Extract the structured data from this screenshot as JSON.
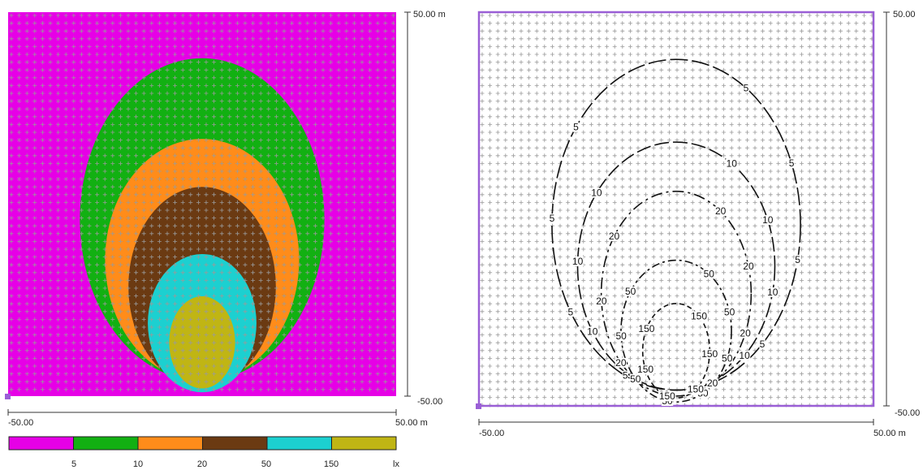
{
  "colors": {
    "background": "#e600e6",
    "grid": "#9a9a9a",
    "border": "#9a5fd6",
    "contour": "#111111",
    "bands": [
      "#e600e6",
      "#12b012",
      "#ff8c1a",
      "#6b3a12",
      "#1cd0d0",
      "#c0b514"
    ]
  },
  "left_plot": {
    "axis_right": {
      "top": "50.00 m",
      "bottom": "-50.00"
    },
    "axis_bottom": {
      "left": "-50.00",
      "right": "50.00 m"
    }
  },
  "right_plot": {
    "axis_right": {
      "top": "50.00",
      "bottom": "-50.00"
    },
    "axis_bottom": {
      "left": "-50.00",
      "right": "50.00 m"
    }
  },
  "legend": {
    "thresholds": [
      "5",
      "10",
      "20",
      "50",
      "150"
    ],
    "unit": "lx"
  },
  "chart_data": [
    {
      "type": "heatmap",
      "xlim": [
        -50,
        50
      ],
      "ylim": [
        -50,
        50
      ],
      "levels": [
        5,
        10,
        20,
        50,
        150
      ],
      "unit": "lx",
      "regions": [
        {
          "level": 5,
          "center": [
            0,
            -4
          ],
          "radii": [
            31.5,
            42
          ]
        },
        {
          "level": 10,
          "center": [
            0,
            -14.5
          ],
          "radii": [
            25,
            31.5
          ]
        },
        {
          "level": 20,
          "center": [
            0,
            -21.5
          ],
          "radii": [
            19,
            26
          ]
        },
        {
          "level": 50,
          "center": [
            0,
            -31
          ],
          "radii": [
            14,
            18
          ]
        },
        {
          "level": 150,
          "center": [
            0,
            -36
          ],
          "radii": [
            8.5,
            12
          ]
        }
      ],
      "legend_position": "bottom"
    },
    {
      "type": "line",
      "xlim": [
        -50,
        50
      ],
      "ylim": [
        -50,
        50
      ],
      "levels": [
        5,
        10,
        20,
        50,
        150
      ],
      "contours": [
        {
          "level": 5,
          "center": [
            0,
            -4
          ],
          "radii": [
            31.5,
            42
          ],
          "labels": [
            "5",
            "5",
            "5",
            "5",
            "5",
            "5",
            "5",
            "5",
            "5"
          ]
        },
        {
          "level": 10,
          "center": [
            0,
            -14.5
          ],
          "radii": [
            25,
            31.5
          ],
          "labels": [
            "10",
            "10",
            "10",
            "10",
            "10",
            "10",
            "10",
            "10",
            "10"
          ]
        },
        {
          "level": 20,
          "center": [
            0,
            -21.5
          ],
          "radii": [
            19,
            26
          ],
          "labels": [
            "20",
            "20",
            "20",
            "20",
            "20",
            "20",
            "20",
            "20"
          ]
        },
        {
          "level": 50,
          "center": [
            0,
            -31
          ],
          "radii": [
            14,
            18
          ],
          "labels": [
            "50",
            "50",
            "50",
            "50",
            "50",
            "50",
            "50",
            "50"
          ]
        },
        {
          "level": 150,
          "center": [
            0,
            -36
          ],
          "radii": [
            8.5,
            12
          ],
          "labels": [
            "150",
            "150",
            "150",
            "150",
            "150",
            "150"
          ]
        }
      ]
    }
  ]
}
